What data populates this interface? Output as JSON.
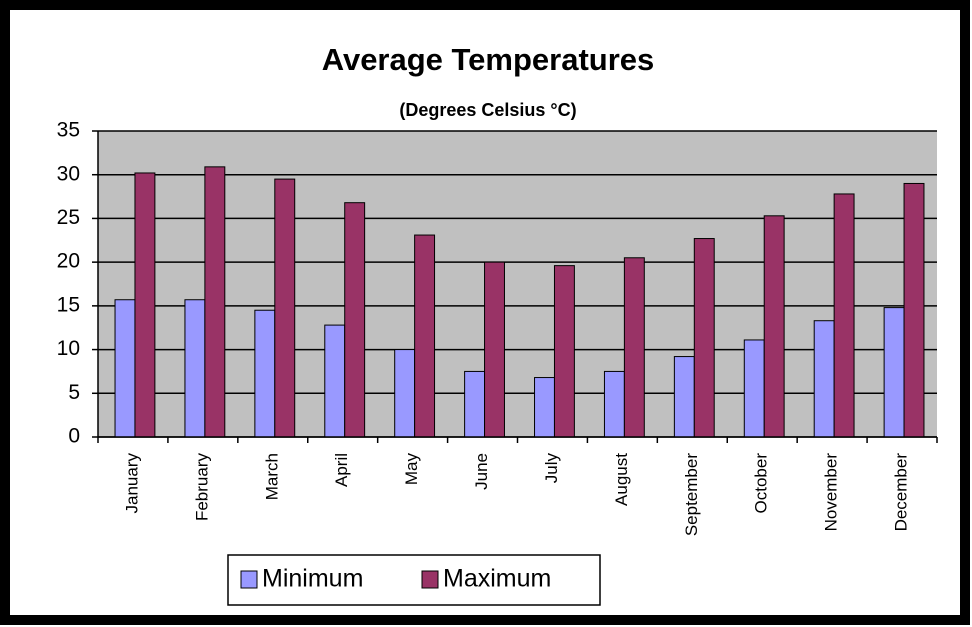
{
  "chart_data": {
    "type": "bar",
    "title": "Average Temperatures",
    "subtitle": "(Degrees Celsius °C)",
    "categories": [
      "January",
      "February",
      "March",
      "April",
      "May",
      "June",
      "July",
      "August",
      "September",
      "October",
      "November",
      "December"
    ],
    "series": [
      {
        "name": "Minimum",
        "color": "#9999ff",
        "values": [
          15.7,
          15.7,
          14.5,
          12.8,
          10,
          7.5,
          6.8,
          7.5,
          9.2,
          11.1,
          13.3,
          14.8
        ]
      },
      {
        "name": "Maximum",
        "color": "#993366",
        "values": [
          30.2,
          30.9,
          29.5,
          26.8,
          23.1,
          20,
          19.6,
          20.5,
          22.7,
          25.3,
          27.8,
          29
        ]
      }
    ],
    "ylim": [
      0,
      35
    ],
    "yticks": [
      0,
      5,
      10,
      15,
      20,
      25,
      30,
      35
    ],
    "grid": true,
    "legend": "bottom"
  }
}
